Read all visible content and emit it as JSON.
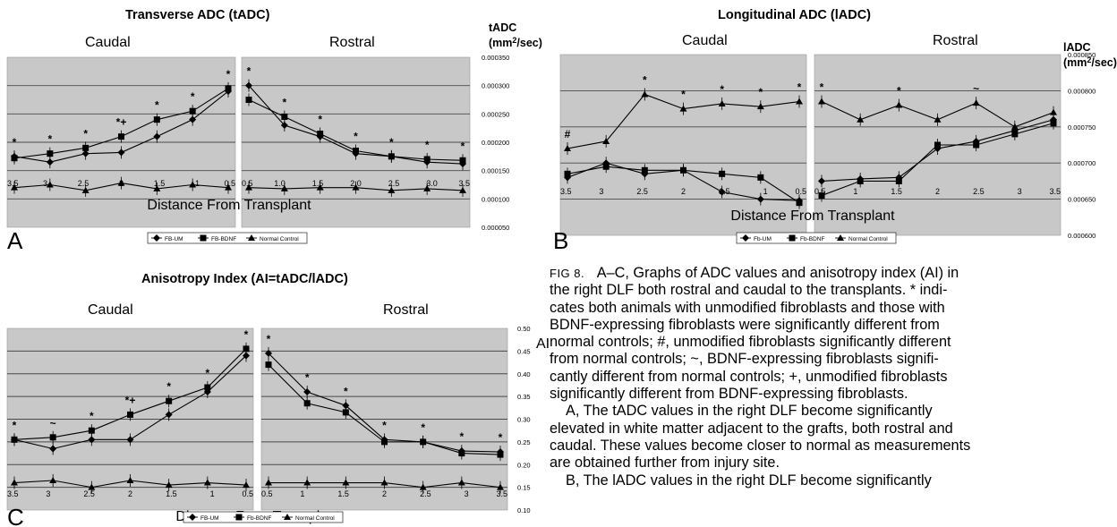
{
  "caption": {
    "fig_label": "FIG 8.",
    "lines": [
      "A–C, Graphs of ADC values and anisotropy index (AI) in",
      "the right DLF both rostral and caudal to the transplants. * indi-",
      "cates both animals with unmodified fibroblasts and those with",
      "BDNF-expressing fibroblasts were significantly different from",
      "normal controls; #, unmodified fibroblasts significantly different",
      "from normal controls; ~, BDNF-expressing fibroblasts signifi-",
      "cantly different from normal controls; +, unmodified fibroblasts",
      "significantly different from BDNF-expressing fibroblasts."
    ],
    "para_a": [
      "A, The tADC values in the right DLF become significantly",
      "elevated in white matter adjacent to the grafts, both rostral and",
      "caudal. These values become closer to normal as measurements",
      "are obtained further from injury site."
    ],
    "para_b_partial": "B, The lADC values in the right DLF become significantly"
  },
  "colors": {
    "plot_bg": "#c8c8c8",
    "grid": "#4a4a4a",
    "series": "#000000"
  },
  "chart_data": [
    {
      "id": "A",
      "type": "line",
      "panel_letter": "A",
      "title": "Transverse ADC (tADC)",
      "left_label": "Caudal",
      "right_label": "Rostral",
      "xlabel": "Distance From Transplant",
      "ylabel_lines": [
        "tADC",
        "(mm²/sec)"
      ],
      "ylim": [
        5e-05,
        0.00035
      ],
      "yticks": [
        "0.000350",
        "0.000300",
        "0.000250",
        "0.000200",
        "0.000150",
        "0.000100",
        "0.000050"
      ],
      "ytick_values": [
        0.00035,
        0.0003,
        0.00025,
        0.0002,
        0.00015,
        0.0001,
        5e-05
      ],
      "left_x": [
        "3.5",
        "3",
        "2.5",
        "2",
        "1.5",
        "1",
        "0.5"
      ],
      "right_x": [
        "0.5",
        "1.0",
        "1.5",
        "2.0",
        "2.5",
        "3.0",
        "3.5"
      ],
      "series": [
        {
          "name": "FB-UM",
          "marker": "diamond",
          "left": [
            0.000175,
            0.000165,
            0.00018,
            0.000182,
            0.00021,
            0.00024,
            0.00029
          ],
          "right": [
            0.0003,
            0.00023,
            0.00021,
            0.00018,
            0.000175,
            0.000165,
            0.000162
          ]
        },
        {
          "name": "FB-BDNF",
          "marker": "square",
          "left": [
            0.000172,
            0.00018,
            0.00019,
            0.00021,
            0.00024,
            0.000255,
            0.000295
          ],
          "right": [
            0.000275,
            0.000245,
            0.000215,
            0.000185,
            0.000175,
            0.00017,
            0.000168
          ]
        },
        {
          "name": "Normal Control",
          "marker": "triangle",
          "left": [
            0.00012,
            0.000125,
            0.000115,
            0.000128,
            0.000118,
            0.000125,
            0.00012
          ],
          "right": [
            0.00012,
            0.000118,
            0.00012,
            0.00012,
            0.000115,
            0.000118,
            0.000115
          ]
        }
      ],
      "annotations_left": [
        "*",
        "*",
        "*",
        "*+",
        "*",
        "*",
        "*"
      ],
      "annotations_right": [
        "*",
        "*",
        "*",
        "*",
        "*",
        "*",
        "*"
      ],
      "legend": [
        "FB-UM",
        "FB-BDNF",
        "Normal Control"
      ]
    },
    {
      "id": "B",
      "type": "line",
      "panel_letter": "B",
      "title": "Longitudinal ADC (lADC)",
      "left_label": "Caudal",
      "right_label": "Rostral",
      "xlabel": "Distance From Transplant",
      "ylabel_lines": [
        "lADC",
        "(mm²/sec)"
      ],
      "ylim": [
        0.0006,
        0.00085
      ],
      "yticks": [
        "0.000850",
        "0.000800",
        "0.000750",
        "0.000700",
        "0.000650",
        "0.000600"
      ],
      "ytick_values": [
        0.00085,
        0.0008,
        0.00075,
        0.0007,
        0.00065,
        0.0006
      ],
      "left_x": [
        "3.5",
        "3",
        "2.5",
        "2",
        "1.5",
        "1",
        "0.5"
      ],
      "right_x": [
        "0.5",
        "1",
        "1.5",
        "2",
        "2.5",
        "3",
        "3.5"
      ],
      "series": [
        {
          "name": "Fb-UM",
          "marker": "diamond",
          "left": [
            0.00068,
            0.0007,
            0.000685,
            0.00069,
            0.00066,
            0.00065,
            0.000648
          ],
          "right": [
            0.000675,
            0.000678,
            0.00068,
            0.00072,
            0.00073,
            0.000745,
            0.00076
          ]
        },
        {
          "name": "Fb-BDNF",
          "marker": "square",
          "left": [
            0.000685,
            0.000695,
            0.00069,
            0.00069,
            0.000685,
            0.00068,
            0.000645
          ],
          "right": [
            0.000655,
            0.000675,
            0.000675,
            0.000725,
            0.000725,
            0.00074,
            0.000755
          ]
        },
        {
          "name": "Normal Control",
          "marker": "triangle",
          "left": [
            0.00072,
            0.00073,
            0.000795,
            0.000775,
            0.000782,
            0.000778,
            0.000785
          ],
          "right": [
            0.000785,
            0.00076,
            0.00078,
            0.00076,
            0.000783,
            0.00075,
            0.00077
          ]
        }
      ],
      "annotations_left": [
        "#",
        "",
        "*",
        "*",
        "*",
        "*",
        "*"
      ],
      "annotations_right": [
        "*",
        "",
        "*",
        "",
        "~",
        "",
        ""
      ],
      "legend": [
        "Fb-UM",
        "Fb-BDNF",
        "Normal Control"
      ]
    },
    {
      "id": "C",
      "type": "line",
      "panel_letter": "C",
      "title": "Anisotropy Index (AI=tADC/lADC)",
      "left_label": "Caudal",
      "right_label": "Rostral",
      "xlabel": "Distance From Transplant",
      "ylabel_lines": [
        "AI"
      ],
      "ylim": [
        0.1,
        0.5
      ],
      "yticks": [
        "0.50",
        "0.45",
        "0.40",
        "0.35",
        "0.30",
        "0.25",
        "0.20",
        "0.15",
        "0.10"
      ],
      "ytick_values": [
        0.5,
        0.45,
        0.4,
        0.35,
        0.3,
        0.25,
        0.2,
        0.15,
        0.1
      ],
      "left_x": [
        "3.5",
        "3",
        "2.5",
        "2",
        "1.5",
        "1",
        "0.5"
      ],
      "right_x": [
        "0.5",
        "1",
        "1.5",
        "2",
        "2.5",
        "3",
        "3.5"
      ],
      "series": [
        {
          "name": "FB-UM",
          "marker": "diamond",
          "left": [
            0.255,
            0.235,
            0.255,
            0.255,
            0.31,
            0.36,
            0.44
          ],
          "right": [
            0.445,
            0.36,
            0.33,
            0.255,
            0.25,
            0.23,
            0.228
          ]
        },
        {
          "name": "Fb-BDNF",
          "marker": "square",
          "left": [
            0.255,
            0.26,
            0.275,
            0.31,
            0.34,
            0.37,
            0.455
          ],
          "right": [
            0.42,
            0.335,
            0.315,
            0.25,
            0.25,
            0.225,
            0.222
          ]
        },
        {
          "name": "Normal Control",
          "marker": "triangle",
          "left": [
            0.16,
            0.165,
            0.15,
            0.165,
            0.155,
            0.16,
            0.155
          ],
          "right": [
            0.16,
            0.16,
            0.16,
            0.16,
            0.15,
            0.16,
            0.15
          ]
        }
      ],
      "annotations_left": [
        "*",
        "~",
        "*",
        "*+",
        "*",
        "*",
        "*"
      ],
      "annotations_right": [
        "*",
        "*",
        "*",
        "*",
        "*",
        "*",
        "*"
      ],
      "legend": [
        "FB-UM",
        "Fb-BDNF",
        "Normal Control"
      ]
    }
  ]
}
